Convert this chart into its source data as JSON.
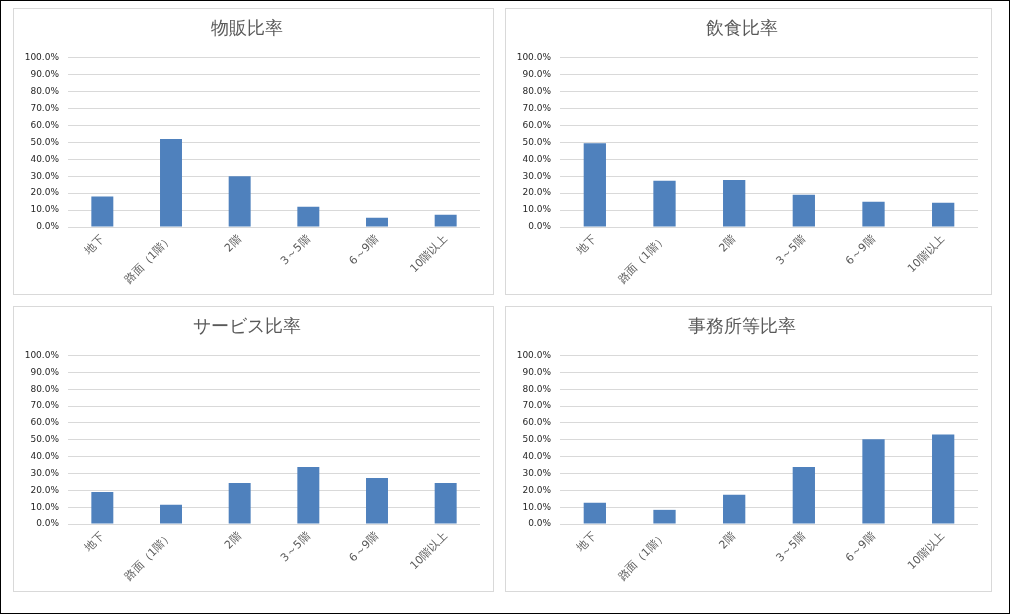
{
  "chart_data": [
    {
      "type": "bar",
      "title": "物販比率",
      "categories": [
        "地下",
        "路面（1階）",
        "2階",
        "3～5階",
        "6～9階",
        "10階以上"
      ],
      "values": [
        18,
        52,
        30,
        12,
        5.5,
        7.3
      ],
      "color": "#4f81bd",
      "ylim": [
        0,
        100
      ],
      "yticks": [
        {
          "value": 0,
          "label": "0.0%"
        },
        {
          "value": 10,
          "label": "10.0%"
        },
        {
          "value": 20,
          "label": "20.0%"
        },
        {
          "value": 30,
          "label": "30.0%"
        },
        {
          "value": 40,
          "label": "40.0%"
        },
        {
          "value": 50,
          "label": "50.0%"
        },
        {
          "value": 60,
          "label": "60.0%"
        },
        {
          "value": 70,
          "label": "70.0%"
        },
        {
          "value": 80,
          "label": "80.0%"
        },
        {
          "value": 90,
          "label": "90.0%"
        },
        {
          "value": 100,
          "label": "100.0%"
        }
      ],
      "grid": "y"
    },
    {
      "type": "bar",
      "title": "飲食比率",
      "categories": [
        "地下",
        "路面（1階）",
        "2階",
        "3～5階",
        "6～9階",
        "10階以上"
      ],
      "values": [
        49.4,
        27.3,
        27.8,
        19,
        14.9,
        14.3
      ],
      "color": "#4f81bd",
      "ylim": [
        0,
        100
      ],
      "yticks": [
        {
          "value": 0,
          "label": "0.0%"
        },
        {
          "value": 10,
          "label": "10.0%"
        },
        {
          "value": 20,
          "label": "20.0%"
        },
        {
          "value": 30,
          "label": "30.0%"
        },
        {
          "value": 40,
          "label": "40.0%"
        },
        {
          "value": 50,
          "label": "50.0%"
        },
        {
          "value": 60,
          "label": "60.0%"
        },
        {
          "value": 70,
          "label": "70.0%"
        },
        {
          "value": 80,
          "label": "80.0%"
        },
        {
          "value": 90,
          "label": "90.0%"
        },
        {
          "value": 100,
          "label": "100.0%"
        }
      ],
      "grid": "y"
    },
    {
      "type": "bar",
      "title": "サービス比率",
      "categories": [
        "地下",
        "路面（1階）",
        "2階",
        "3～5階",
        "6～9階",
        "10階以上"
      ],
      "values": [
        19,
        11.4,
        24.4,
        33.8,
        27.3,
        24.4
      ],
      "color": "#4f81bd",
      "ylim": [
        0,
        100
      ],
      "yticks": [
        {
          "value": 0,
          "label": "0.0%"
        },
        {
          "value": 10,
          "label": "10.0%"
        },
        {
          "value": 20,
          "label": "20.0%"
        },
        {
          "value": 30,
          "label": "30.0%"
        },
        {
          "value": 40,
          "label": "40.0%"
        },
        {
          "value": 50,
          "label": "50.0%"
        },
        {
          "value": 60,
          "label": "60.0%"
        },
        {
          "value": 70,
          "label": "70.0%"
        },
        {
          "value": 80,
          "label": "80.0%"
        },
        {
          "value": 90,
          "label": "90.0%"
        },
        {
          "value": 100,
          "label": "100.0%"
        }
      ],
      "grid": "y"
    },
    {
      "type": "bar",
      "title": "事務所等比率",
      "categories": [
        "地下",
        "路面（1階）",
        "2階",
        "3～5階",
        "6～9階",
        "10階以上"
      ],
      "values": [
        12.6,
        8.4,
        17.3,
        33.8,
        50.3,
        53.2
      ],
      "color": "#4f81bd",
      "ylim": [
        0,
        100
      ],
      "yticks": [
        {
          "value": 0,
          "label": "0.0%"
        },
        {
          "value": 10,
          "label": "10.0%"
        },
        {
          "value": 20,
          "label": "20.0%"
        },
        {
          "value": 30,
          "label": "30.0%"
        },
        {
          "value": 40,
          "label": "40.0%"
        },
        {
          "value": 50,
          "label": "50.0%"
        },
        {
          "value": 60,
          "label": "60.0%"
        },
        {
          "value": 70,
          "label": "70.0%"
        },
        {
          "value": 80,
          "label": "80.0%"
        },
        {
          "value": 90,
          "label": "90.0%"
        },
        {
          "value": 100,
          "label": "100.0%"
        }
      ],
      "grid": "y"
    }
  ]
}
